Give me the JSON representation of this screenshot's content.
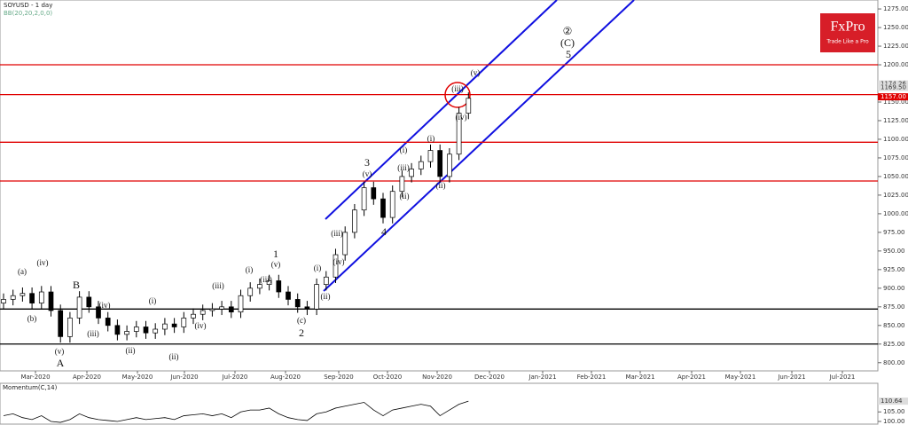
{
  "chart_data": {
    "type": "candlestick",
    "title": "SOYUSD - 1 day",
    "subtitle": "BB(20,20,2,0,0)",
    "open": [
      880,
      885,
      890,
      893,
      880,
      895,
      870,
      835,
      860,
      888,
      875,
      860,
      850,
      838,
      842,
      848,
      840,
      845,
      852,
      848,
      860,
      865,
      870,
      872,
      875,
      868,
      890,
      900,
      905,
      910,
      895,
      885,
      875,
      872,
      905,
      915,
      945,
      975,
      1005,
      1035,
      1020,
      995,
      1030,
      1050,
      1060,
      1070,
      1085,
      1050,
      1080,
      1135
    ],
    "high": [
      893,
      898,
      901,
      901,
      903,
      903,
      878,
      868,
      896,
      896,
      883,
      868,
      858,
      850,
      856,
      856,
      853,
      860,
      860,
      868,
      873,
      878,
      880,
      883,
      883,
      898,
      908,
      913,
      918,
      918,
      903,
      893,
      883,
      913,
      923,
      953,
      983,
      1013,
      1043,
      1043,
      1028,
      1038,
      1058,
      1068,
      1078,
      1093,
      1093,
      1088,
      1143,
      1163
    ],
    "low": [
      872,
      877,
      882,
      872,
      872,
      862,
      827,
      827,
      852,
      867,
      852,
      842,
      830,
      830,
      834,
      832,
      832,
      837,
      840,
      840,
      852,
      857,
      862,
      864,
      860,
      860,
      882,
      892,
      897,
      887,
      877,
      867,
      864,
      864,
      897,
      907,
      937,
      967,
      997,
      1012,
      987,
      987,
      1022,
      1042,
      1052,
      1062,
      1042,
      1042,
      1072,
      1127
    ],
    "close": [
      885,
      890,
      893,
      880,
      895,
      870,
      835,
      860,
      888,
      875,
      860,
      850,
      838,
      842,
      848,
      840,
      845,
      852,
      848,
      860,
      865,
      870,
      872,
      875,
      868,
      890,
      900,
      905,
      910,
      895,
      885,
      875,
      872,
      905,
      915,
      945,
      975,
      1005,
      1035,
      1020,
      995,
      1030,
      1050,
      1060,
      1070,
      1085,
      1050,
      1080,
      1135,
      1155
    ],
    "ylim": [
      789,
      1287
    ],
    "yticks": [
      {
        "value": 800,
        "label": "800.00"
      },
      {
        "value": 825,
        "label": "825.00"
      },
      {
        "value": 850,
        "label": "850.00"
      },
      {
        "value": 875,
        "label": "875.00"
      },
      {
        "value": 900,
        "label": "900.00"
      },
      {
        "value": 925,
        "label": "925.00"
      },
      {
        "value": 950,
        "label": "950.00"
      },
      {
        "value": 975,
        "label": "975.00"
      },
      {
        "value": 1000,
        "label": "1000.00"
      },
      {
        "value": 1025,
        "label": "1025.00"
      },
      {
        "value": 1050,
        "label": "1050.00"
      },
      {
        "value": 1075,
        "label": "1075.00"
      },
      {
        "value": 1100,
        "label": "1100.00"
      },
      {
        "value": 1125,
        "label": "1125.00"
      },
      {
        "value": 1150,
        "label": "1150.00"
      },
      {
        "value": 1175,
        "label": "1175.00"
      },
      {
        "value": 1200,
        "label": "1200.00"
      },
      {
        "value": 1225,
        "label": "1225.00"
      },
      {
        "value": 1250,
        "label": "1250.00"
      },
      {
        "value": 1275,
        "label": "1275.00"
      }
    ],
    "months": [
      "Mar-2020",
      "Apr-2020",
      "May-2020",
      "Jun-2020",
      "Jul-2020",
      "Aug-2020",
      "Sep-2020",
      "Oct-2020",
      "Nov-2020",
      "Dec-2020",
      "Jan-2021",
      "Feb-2021",
      "Mar-2021",
      "Apr-2021",
      "May-2021",
      "Jun-2021",
      "Jul-2021"
    ],
    "red_levels": [
      1200,
      1160,
      1096,
      1044
    ],
    "red_color": "#e00000",
    "black_levels": [
      872,
      825
    ],
    "black_color": "#000000",
    "price_labels": [
      {
        "value": 1174.26,
        "label": "1174.26"
      },
      {
        "value": 1169.5,
        "label": "1169.50"
      },
      {
        "value": 1157,
        "label": "1157.00"
      }
    ],
    "annotations": [
      "(a)",
      "(iv)",
      "(b)",
      "(v)",
      "A",
      "B",
      "(iii)",
      "(iv)",
      "(ii)",
      "(i)",
      "(ii)",
      "(iii)",
      "(iv)",
      "(i)",
      "1",
      "(v)",
      "(iii)",
      "2",
      "(c)",
      "(i)",
      "(iii)",
      "(iv)",
      "(ii)",
      "3",
      "(v)",
      "4",
      "(i)",
      "(iii)",
      "(ii)",
      "(i)",
      "(ii)",
      "(iii)",
      "(iv)",
      "(v)",
      "(C)",
      "5",
      "②"
    ],
    "momentum": {
      "title": "Momentum(C,14)",
      "values": [
        103,
        104,
        102,
        101,
        103,
        100,
        99.5,
        101,
        104,
        102,
        101,
        100.5,
        100,
        101,
        102,
        101,
        101.5,
        102,
        101,
        103,
        103.5,
        104,
        103,
        104,
        102,
        105,
        106,
        106,
        107,
        104,
        102,
        101,
        100.5,
        104,
        105,
        107,
        108,
        109,
        110,
        106,
        103,
        106,
        107,
        108,
        109,
        108,
        103,
        106,
        109,
        110.64
      ],
      "ylim": [
        98.6,
        120
      ],
      "yticks": [
        {
          "value": 100,
          "label": "100.00"
        },
        {
          "value": 105,
          "label": "105.00"
        }
      ],
      "last_label": {
        "value": 110.64,
        "label": "110.64"
      }
    }
  },
  "logo": {
    "name": "FxPro",
    "tagline": "Trade Like a Pro"
  }
}
